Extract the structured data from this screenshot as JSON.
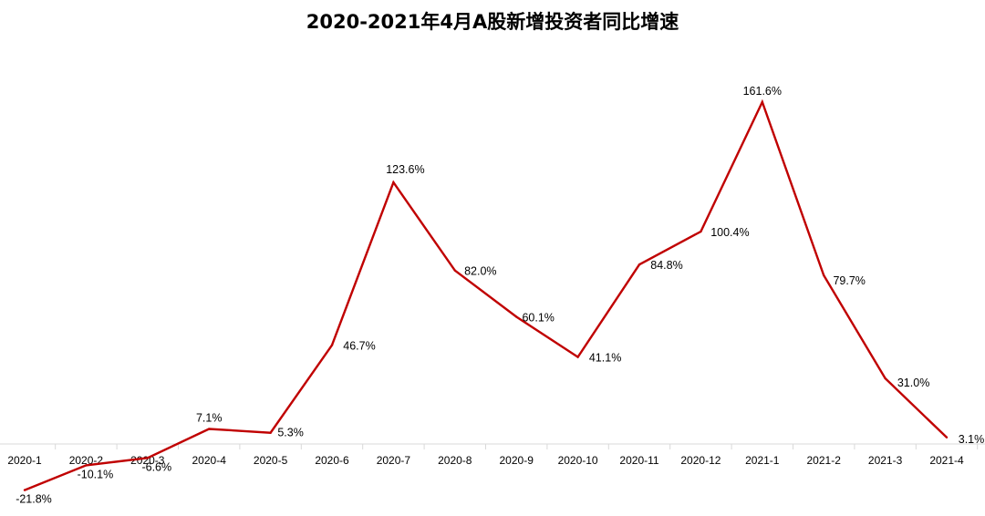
{
  "chart_data": {
    "type": "line",
    "title": "2020-2021年4月A股新增投资者同比增速",
    "categories": [
      "2020-1",
      "2020-2",
      "2020-3",
      "2020-4",
      "2020-5",
      "2020-6",
      "2020-7",
      "2020-8",
      "2020-9",
      "2020-10",
      "2020-11",
      "2020-12",
      "2021-1",
      "2021-2",
      "2021-3",
      "2021-4"
    ],
    "series": [
      {
        "values": [
          -21.8,
          -10.1,
          -6.6,
          7.1,
          5.3,
          46.7,
          123.6,
          82.0,
          60.1,
          41.1,
          84.8,
          100.4,
          161.6,
          79.7,
          31.0,
          3.1
        ]
      }
    ],
    "data_labels": [
      "-21.8%",
      "-10.1%",
      "-6.6%",
      "7.1%",
      "5.3%",
      "46.7%",
      "123.6%",
      "82.0%",
      "60.1%",
      "41.1%",
      "84.8%",
      "100.4%",
      "161.6%",
      "79.7%",
      "31.0%",
      "3.1%"
    ],
    "line_color": "#c00000",
    "axis_color": "#d9d9d9",
    "gridlines": false,
    "legend": "none"
  }
}
